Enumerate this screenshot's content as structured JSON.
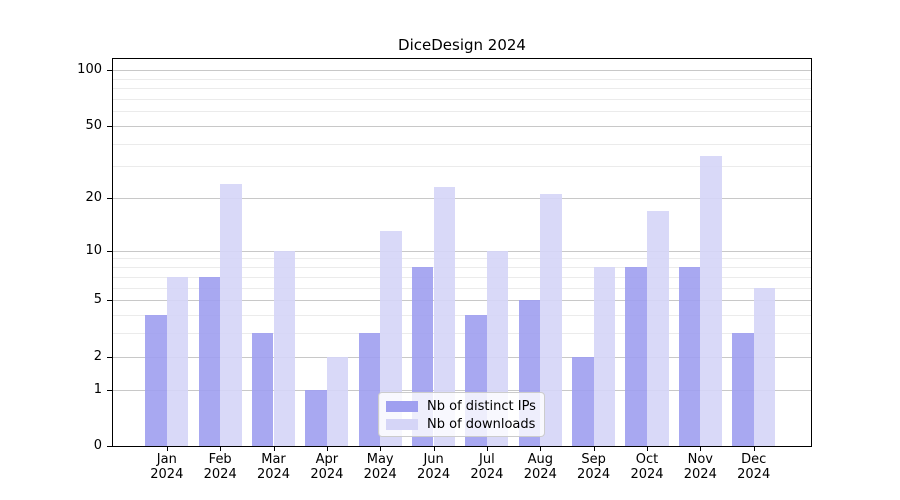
{
  "figure": {
    "title": "DiceDesign 2024"
  },
  "chart_data": {
    "type": "bar",
    "title": "DiceDesign 2024",
    "categories": [
      "Jan 2024",
      "Feb 2024",
      "Mar 2024",
      "Apr 2024",
      "May 2024",
      "Jun 2024",
      "Jul 2024",
      "Aug 2024",
      "Sep 2024",
      "Oct 2024",
      "Nov 2024",
      "Dec 2024"
    ],
    "months": [
      "Jan",
      "Feb",
      "Mar",
      "Apr",
      "May",
      "Jun",
      "Jul",
      "Aug",
      "Sep",
      "Oct",
      "Nov",
      "Dec"
    ],
    "year_label": "2024",
    "series": [
      {
        "name": "Nb of distinct IPs",
        "color": "#9f9ff0",
        "values": [
          4,
          7,
          3,
          1,
          3,
          8,
          4,
          5,
          2,
          8,
          8,
          3
        ]
      },
      {
        "name": "Nb of downloads",
        "color": "#d5d5f7",
        "values": [
          7,
          24,
          10,
          2,
          13,
          23,
          10,
          21,
          8,
          17,
          34,
          6
        ]
      }
    ],
    "y_axis": {
      "scale": "log10(1+y)",
      "major_ticks": [
        0,
        1,
        2,
        5,
        10,
        20,
        50,
        100
      ],
      "minor_ticks": [
        3,
        4,
        6,
        7,
        8,
        9,
        30,
        40,
        60,
        70,
        80,
        90
      ],
      "ylim": [
        0,
        115
      ]
    },
    "grid": {
      "major_color": "#c8c8c8",
      "minor_color": "#ebebeb",
      "on": true
    },
    "legend": {
      "position": "lower center",
      "entries": [
        "Nb of distinct IPs",
        "Nb of downloads"
      ]
    }
  }
}
